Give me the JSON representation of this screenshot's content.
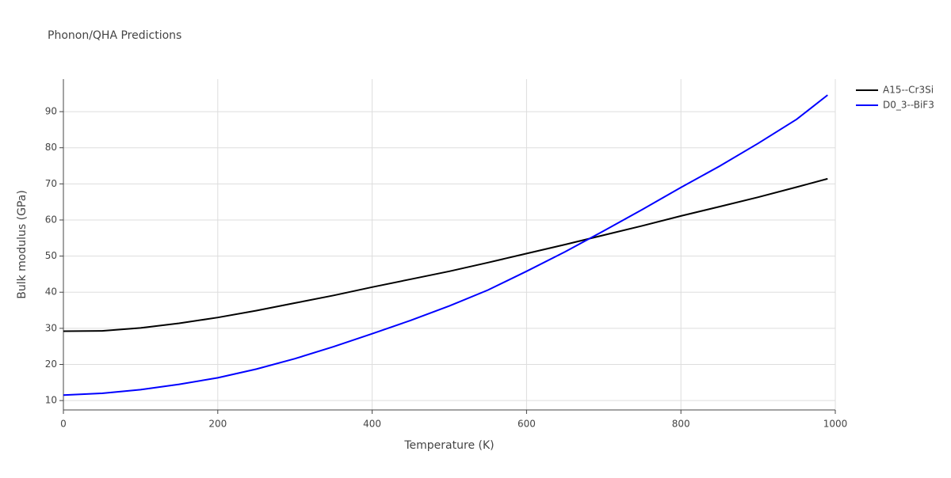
{
  "chart_data": {
    "type": "line",
    "title": "Phonon/QHA Predictions",
    "x_label": "Temperature (K)",
    "y_label": "Bulk modulus (GPa)",
    "x": [
      0,
      50,
      100,
      150,
      200,
      250,
      300,
      350,
      400,
      450,
      500,
      550,
      600,
      650,
      700,
      750,
      800,
      850,
      900,
      950,
      990
    ],
    "series": [
      {
        "name": "A15--Cr3Si",
        "color": "#000000",
        "values": [
          29.2,
          29.3,
          30.1,
          31.4,
          33.0,
          34.9,
          37.0,
          39.1,
          41.4,
          43.6,
          45.8,
          48.2,
          50.7,
          53.2,
          55.8,
          58.4,
          61.1,
          63.7,
          66.3,
          69.1,
          71.4
        ]
      },
      {
        "name": "D0_3--BiF3",
        "color": "#0000ff",
        "values": [
          11.5,
          12.0,
          13.0,
          14.5,
          16.3,
          18.7,
          21.6,
          24.9,
          28.5,
          32.2,
          36.2,
          40.6,
          45.8,
          51.2,
          57.0,
          62.9,
          69.0,
          74.9,
          81.2,
          87.9,
          94.6
        ]
      }
    ],
    "xlim": [
      0,
      1000
    ],
    "xticks": [
      0,
      200,
      400,
      600,
      800,
      1000
    ],
    "ylim": [
      7.4,
      99
    ],
    "yticks": [
      10,
      20,
      30,
      40,
      50,
      60,
      70,
      80,
      90
    ],
    "grid": true,
    "legend": "right"
  }
}
